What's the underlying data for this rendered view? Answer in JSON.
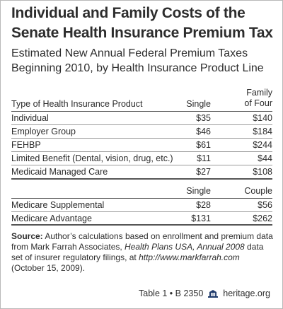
{
  "title_line1": "Individual and Family Costs of the",
  "title_line2": "Senate Health Insurance Premium Tax",
  "subtitle_line1": "Estimated New Annual Federal Premium Taxes",
  "subtitle_line2": "Beginning 2010, by Health Insurance Product Line",
  "table1": {
    "col_product": "Type of Health Insurance Product",
    "col_single": "Single",
    "col_family_1": "Family",
    "col_family_2": "of Four",
    "rows": [
      {
        "product": "Individual",
        "single": "$35",
        "family": "$140"
      },
      {
        "product": "Employer Group",
        "single": "$46",
        "family": "$184"
      },
      {
        "product": "FEHBP",
        "single": "$61",
        "family": "$244"
      },
      {
        "product": "Limited Benefit (Dental, vision, drug, etc.)",
        "single": "$11",
        "family": "$44"
      },
      {
        "product": "Medicaid Managed Care",
        "single": "$27",
        "family": "$108"
      }
    ]
  },
  "table2": {
    "col_single": "Single",
    "col_couple": "Couple",
    "rows": [
      {
        "product": "Medicare Supplemental",
        "single": "$28",
        "couple": "$56"
      },
      {
        "product": "Medicare Advantage",
        "single": "$131",
        "couple": "$262"
      }
    ]
  },
  "source": {
    "label": "Source:",
    "text1": " Author’s calculations based on enrollment and premium data from Mark Farrah Associates, ",
    "italic1": "Health Plans USA, Annual 2008",
    "text2": " data set of insurer regulatory filings, at ",
    "italic2": "http://www.markfarrah.com",
    "text3": " (October 15, 2009)."
  },
  "footer": {
    "table_ref": "Table 1 • B 2350",
    "site": "heritage.org"
  }
}
